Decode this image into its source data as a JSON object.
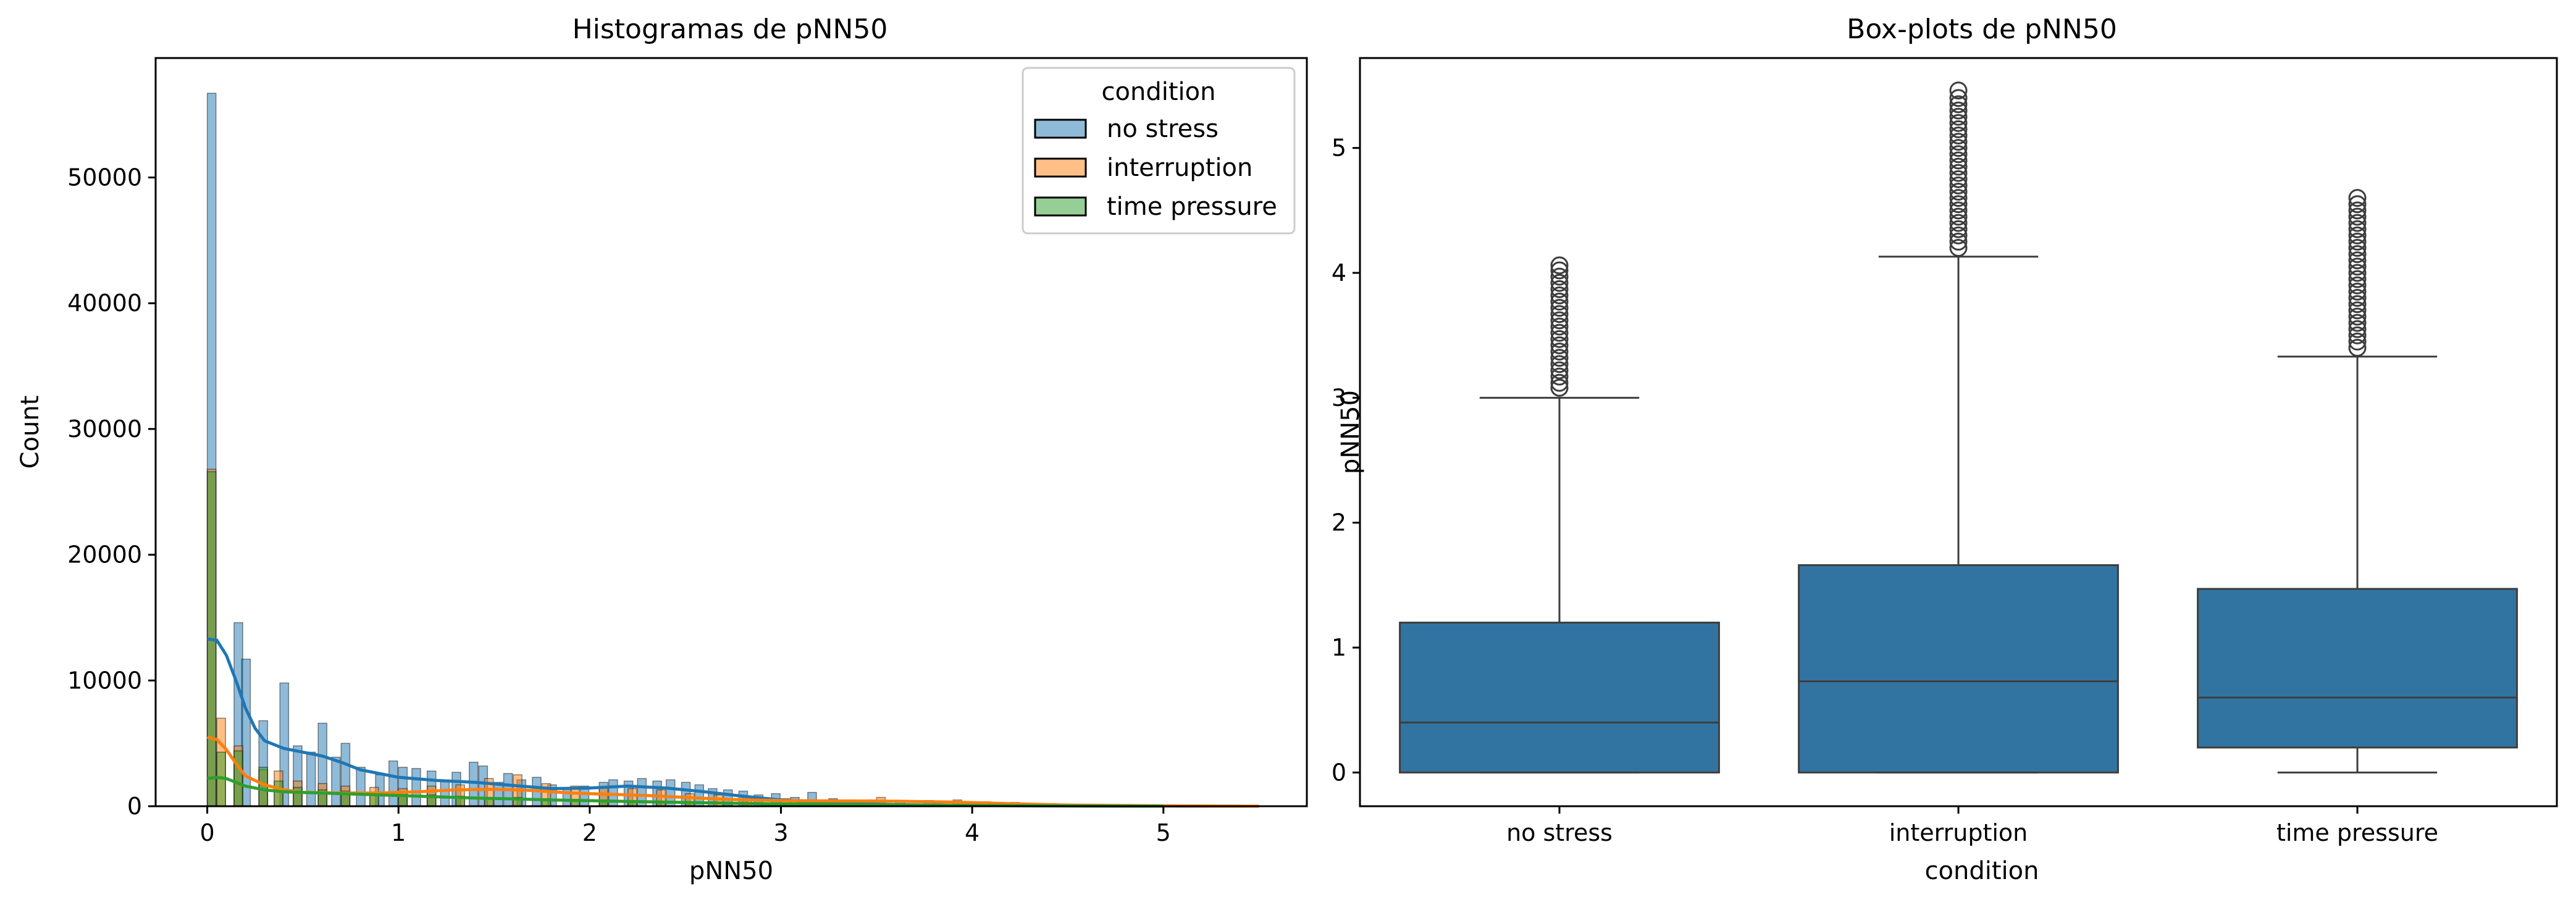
{
  "figure": {
    "left_title": "Histogramas de pNN50",
    "right_title": "Box-plots de pNN50"
  },
  "chart_data": [
    {
      "type": "bar",
      "subtype": "histogram-with-kde",
      "title": "Histogramas de pNN50",
      "xlabel": "pNN50",
      "ylabel": "Count",
      "xlim": [
        -0.27,
        5.75
      ],
      "ylim": [
        0,
        59500
      ],
      "xticks": [
        0,
        1,
        2,
        3,
        4,
        5
      ],
      "yticks": [
        0,
        10000,
        20000,
        30000,
        40000,
        50000
      ],
      "grid": false,
      "legend": {
        "title": "condition",
        "placement": "top-right",
        "entries": [
          "no stress",
          "interruption",
          "time pressure"
        ]
      },
      "bin_width": 0.0455,
      "series": [
        {
          "name": "no stress",
          "color": "#1f77b4",
          "bins": [
            [
              0.0,
              56700
            ],
            [
              0.14,
              14600
            ],
            [
              0.18,
              11700
            ],
            [
              0.27,
              6800
            ],
            [
              0.38,
              9800
            ],
            [
              0.45,
              4800
            ],
            [
              0.52,
              4300
            ],
            [
              0.58,
              6600
            ],
            [
              0.65,
              3900
            ],
            [
              0.7,
              5000
            ],
            [
              0.78,
              3100
            ],
            [
              0.88,
              2500
            ],
            [
              0.95,
              3600
            ],
            [
              1.0,
              3100
            ],
            [
              1.07,
              3000
            ],
            [
              1.15,
              2800
            ],
            [
              1.22,
              2100
            ],
            [
              1.28,
              2700
            ],
            [
              1.37,
              3500
            ],
            [
              1.42,
              3200
            ],
            [
              1.5,
              1900
            ],
            [
              1.55,
              2600
            ],
            [
              1.62,
              2100
            ],
            [
              1.7,
              2300
            ],
            [
              1.78,
              1700
            ],
            [
              1.86,
              1400
            ],
            [
              1.95,
              1600
            ],
            [
              2.05,
              1900
            ],
            [
              2.1,
              2100
            ],
            [
              2.18,
              2000
            ],
            [
              2.25,
              2200
            ],
            [
              2.33,
              2000
            ],
            [
              2.4,
              2100
            ],
            [
              2.48,
              1900
            ],
            [
              2.55,
              1700
            ],
            [
              2.62,
              1400
            ],
            [
              2.7,
              1300
            ],
            [
              2.78,
              1200
            ],
            [
              2.86,
              900
            ],
            [
              2.95,
              1000
            ],
            [
              3.05,
              700
            ],
            [
              3.14,
              1100
            ],
            [
              3.25,
              600
            ],
            [
              3.35,
              500
            ],
            [
              3.45,
              500
            ],
            [
              3.6,
              400
            ],
            [
              3.8,
              300
            ],
            [
              4.0,
              250
            ],
            [
              4.2,
              150
            ],
            [
              4.5,
              100
            ],
            [
              4.8,
              80
            ],
            [
              5.1,
              60
            ],
            [
              5.4,
              40
            ]
          ],
          "kde": [
            [
              0.0,
              13300
            ],
            [
              0.05,
              13200
            ],
            [
              0.1,
              12000
            ],
            [
              0.15,
              10000
            ],
            [
              0.2,
              7800
            ],
            [
              0.25,
              6200
            ],
            [
              0.3,
              5200
            ],
            [
              0.4,
              4600
            ],
            [
              0.5,
              4300
            ],
            [
              0.6,
              4000
            ],
            [
              0.7,
              3500
            ],
            [
              0.8,
              2900
            ],
            [
              1.0,
              2300
            ],
            [
              1.2,
              2050
            ],
            [
              1.4,
              1900
            ],
            [
              1.6,
              1650
            ],
            [
              1.8,
              1400
            ],
            [
              2.0,
              1450
            ],
            [
              2.2,
              1600
            ],
            [
              2.4,
              1450
            ],
            [
              2.6,
              1150
            ],
            [
              2.8,
              800
            ],
            [
              3.0,
              500
            ],
            [
              3.3,
              250
            ],
            [
              3.6,
              120
            ],
            [
              4.0,
              60
            ],
            [
              4.5,
              25
            ],
            [
              5.0,
              10
            ],
            [
              5.5,
              0
            ]
          ]
        },
        {
          "name": "interruption",
          "color": "#ff7f0e",
          "bins": [
            [
              0.0,
              26800
            ],
            [
              0.05,
              7000
            ],
            [
              0.14,
              4800
            ],
            [
              0.27,
              2900
            ],
            [
              0.35,
              2800
            ],
            [
              0.45,
              2000
            ],
            [
              0.58,
              1800
            ],
            [
              0.7,
              1600
            ],
            [
              0.85,
              1500
            ],
            [
              1.0,
              1400
            ],
            [
              1.15,
              1600
            ],
            [
              1.3,
              1700
            ],
            [
              1.45,
              2200
            ],
            [
              1.6,
              2500
            ],
            [
              1.75,
              1800
            ],
            [
              1.9,
              1600
            ],
            [
              2.05,
              1500
            ],
            [
              2.2,
              1400
            ],
            [
              2.35,
              1300
            ],
            [
              2.5,
              1000
            ],
            [
              2.65,
              900
            ],
            [
              2.8,
              700
            ],
            [
              3.0,
              600
            ],
            [
              3.2,
              500
            ],
            [
              3.5,
              700
            ],
            [
              3.75,
              450
            ],
            [
              3.9,
              500
            ],
            [
              4.05,
              350
            ],
            [
              4.2,
              300
            ],
            [
              4.4,
              200
            ],
            [
              4.7,
              100
            ],
            [
              5.0,
              60
            ],
            [
              5.3,
              40
            ]
          ],
          "kde": [
            [
              0.0,
              5500
            ],
            [
              0.05,
              5300
            ],
            [
              0.1,
              4500
            ],
            [
              0.15,
              3400
            ],
            [
              0.2,
              2400
            ],
            [
              0.3,
              1700
            ],
            [
              0.4,
              1300
            ],
            [
              0.5,
              1100
            ],
            [
              0.7,
              1050
            ],
            [
              0.9,
              1050
            ],
            [
              1.1,
              1150
            ],
            [
              1.3,
              1300
            ],
            [
              1.5,
              1350
            ],
            [
              1.7,
              1250
            ],
            [
              1.9,
              1050
            ],
            [
              2.1,
              950
            ],
            [
              2.3,
              850
            ],
            [
              2.5,
              700
            ],
            [
              2.7,
              550
            ],
            [
              3.0,
              450
            ],
            [
              3.3,
              420
            ],
            [
              3.6,
              400
            ],
            [
              3.9,
              330
            ],
            [
              4.2,
              200
            ],
            [
              4.5,
              90
            ],
            [
              5.0,
              30
            ],
            [
              5.5,
              0
            ]
          ]
        },
        {
          "name": "time pressure",
          "color": "#2ca02c",
          "bins": [
            [
              0.0,
              26600
            ],
            [
              0.05,
              4300
            ],
            [
              0.14,
              4400
            ],
            [
              0.27,
              3100
            ],
            [
              0.35,
              2000
            ],
            [
              0.45,
              1500
            ],
            [
              0.58,
              1300
            ],
            [
              0.7,
              1200
            ],
            [
              0.85,
              1000
            ],
            [
              1.0,
              1100
            ],
            [
              1.15,
              900
            ],
            [
              1.3,
              800
            ],
            [
              1.45,
              700
            ],
            [
              1.6,
              700
            ],
            [
              1.75,
              600
            ],
            [
              1.9,
              550
            ],
            [
              2.05,
              500
            ],
            [
              2.2,
              450
            ],
            [
              2.35,
              400
            ],
            [
              2.5,
              350
            ],
            [
              2.7,
              300
            ],
            [
              2.9,
              250
            ],
            [
              3.1,
              200
            ],
            [
              3.4,
              150
            ],
            [
              3.8,
              120
            ],
            [
              4.2,
              80
            ],
            [
              4.5,
              40
            ]
          ],
          "kde": [
            [
              0.0,
              2200
            ],
            [
              0.05,
              2300
            ],
            [
              0.1,
              2200
            ],
            [
              0.15,
              1900
            ],
            [
              0.2,
              1600
            ],
            [
              0.3,
              1300
            ],
            [
              0.4,
              1150
            ],
            [
              0.6,
              1050
            ],
            [
              0.8,
              950
            ],
            [
              1.0,
              850
            ],
            [
              1.2,
              750
            ],
            [
              1.4,
              650
            ],
            [
              1.6,
              580
            ],
            [
              1.8,
              500
            ],
            [
              2.0,
              440
            ],
            [
              2.2,
              380
            ],
            [
              2.5,
              300
            ],
            [
              2.8,
              230
            ],
            [
              3.1,
              170
            ],
            [
              3.5,
              110
            ],
            [
              4.0,
              60
            ],
            [
              4.5,
              20
            ],
            [
              5.0,
              0
            ]
          ]
        }
      ]
    },
    {
      "type": "box",
      "title": "Box-plots de pNN50",
      "xlabel": "condition",
      "ylabel": "pNN50",
      "ylim": [
        -0.27,
        5.72
      ],
      "yticks": [
        0,
        1,
        2,
        3,
        4,
        5
      ],
      "grid": false,
      "color": "#3274a1",
      "categories": [
        "no stress",
        "interruption",
        "time pressure"
      ],
      "boxes": [
        {
          "category": "no stress",
          "whisker_low": 0,
          "q1": 0,
          "median": 0.4,
          "q3": 1.2,
          "whisker_high": 3.0,
          "outliers": [
            3.08,
            3.12,
            3.17,
            3.22,
            3.27,
            3.32,
            3.37,
            3.42,
            3.47,
            3.52,
            3.57,
            3.62,
            3.67,
            3.72,
            3.77,
            3.82,
            3.87,
            3.92,
            3.97,
            4.02,
            4.06
          ]
        },
        {
          "category": "interruption",
          "whisker_low": 0,
          "q1": 0,
          "median": 0.73,
          "q3": 1.66,
          "whisker_high": 4.13,
          "outliers": [
            4.2,
            4.25,
            4.3,
            4.35,
            4.4,
            4.45,
            4.5,
            4.55,
            4.6,
            4.65,
            4.7,
            4.75,
            4.8,
            4.85,
            4.9,
            4.95,
            5.0,
            5.05,
            5.1,
            5.15,
            5.2,
            5.25,
            5.3,
            5.35,
            5.4,
            5.46
          ]
        },
        {
          "category": "time pressure",
          "whisker_low": 0,
          "q1": 0.2,
          "median": 0.6,
          "q3": 1.47,
          "whisker_high": 3.33,
          "outliers": [
            3.4,
            3.45,
            3.5,
            3.55,
            3.6,
            3.65,
            3.7,
            3.75,
            3.8,
            3.85,
            3.9,
            3.95,
            4.0,
            4.05,
            4.1,
            4.15,
            4.2,
            4.25,
            4.3,
            4.35,
            4.4,
            4.45,
            4.5,
            4.55,
            4.6
          ]
        }
      ]
    }
  ]
}
